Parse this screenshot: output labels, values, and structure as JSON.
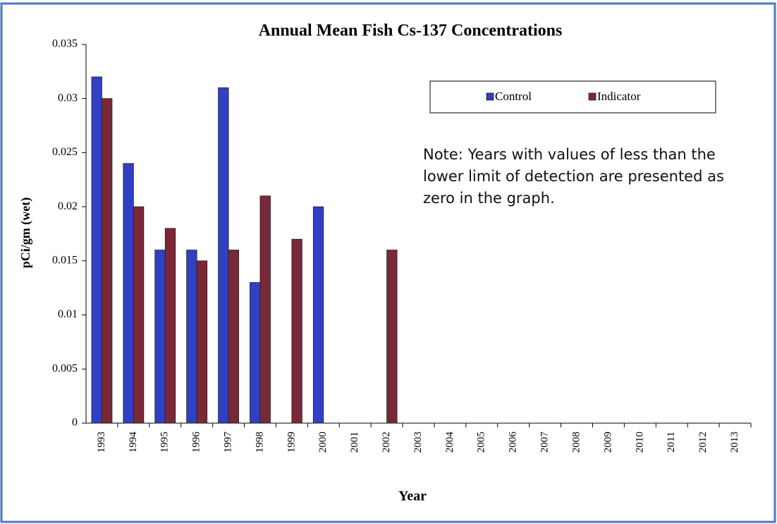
{
  "chart_data": {
    "type": "bar",
    "title": "Annual Mean Fish  Cs-137 Concentrations",
    "x_label": "Year",
    "y_label": "pCi/gm (wet)",
    "annotation": "Note: Years with values  of less than the lower limit of detection are presented as zero in the graph.",
    "categories": [
      "1993",
      "1994",
      "1995",
      "1996",
      "1997",
      "1998",
      "1999",
      "2000",
      "2001",
      "2002",
      "2003",
      "2004",
      "2005",
      "2006",
      "2007",
      "2008",
      "2009",
      "2010",
      "2011",
      "2012",
      "2013"
    ],
    "series": [
      {
        "name": "Control",
        "color": "#3040c4",
        "values": [
          0.032,
          0.024,
          0.016,
          0.016,
          0.031,
          0.013,
          0,
          0.02,
          0,
          0,
          0,
          0,
          0,
          0,
          0,
          0,
          0,
          0,
          0,
          0,
          0
        ]
      },
      {
        "name": "Indicator",
        "color": "#7a2838",
        "values": [
          0.03,
          0.02,
          0.018,
          0.015,
          0.016,
          0.021,
          0.017,
          0,
          0,
          0.016,
          0,
          0,
          0,
          0,
          0,
          0,
          0,
          0,
          0,
          0,
          0
        ]
      }
    ],
    "ylim": [
      0,
      0.035
    ],
    "yticks": [
      0,
      0.005,
      0.01,
      0.015,
      0.02,
      0.025,
      0.03,
      0.035
    ],
    "grid": false,
    "legend": "top-right"
  }
}
